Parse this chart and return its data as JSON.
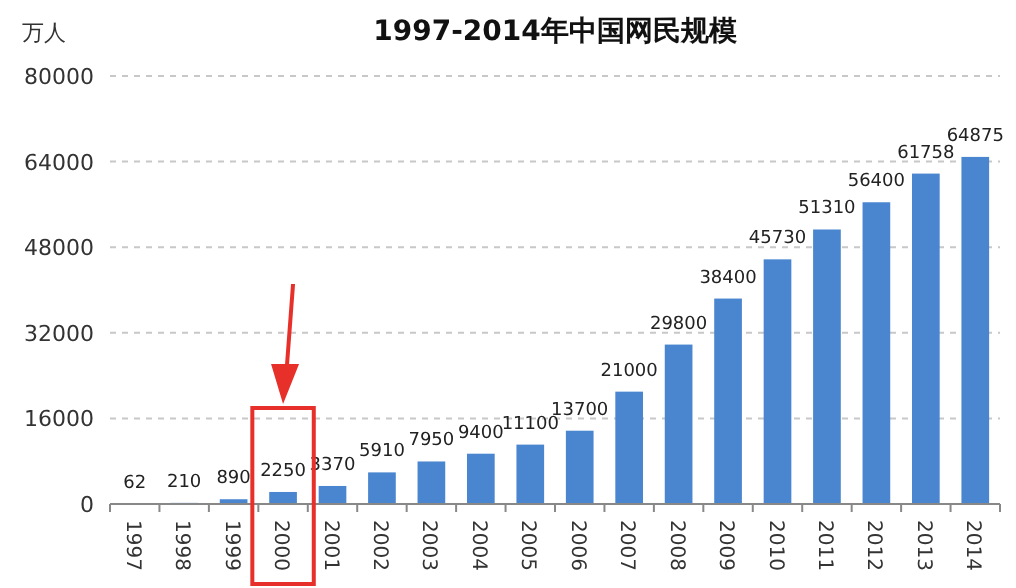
{
  "chart_data": {
    "type": "bar",
    "title": "1997-2014年中国网民规模",
    "ylabel": "万人",
    "categories": [
      "1997",
      "1998",
      "1999",
      "2000",
      "2001",
      "2002",
      "2003",
      "2004",
      "2005",
      "2006",
      "2007",
      "2008",
      "2009",
      "2010",
      "2011",
      "2012",
      "2013",
      "2014"
    ],
    "values": [
      62,
      210,
      890,
      2250,
      3370,
      5910,
      7950,
      9400,
      11100,
      13700,
      21000,
      29800,
      38400,
      45730,
      51310,
      56400,
      61758,
      64875
    ],
    "color": "#4a86cf",
    "ylim": [
      0,
      80000
    ],
    "yticks": [
      0,
      16000,
      32000,
      48000,
      64000,
      80000
    ],
    "grid": "y",
    "data_labels": true
  }
}
